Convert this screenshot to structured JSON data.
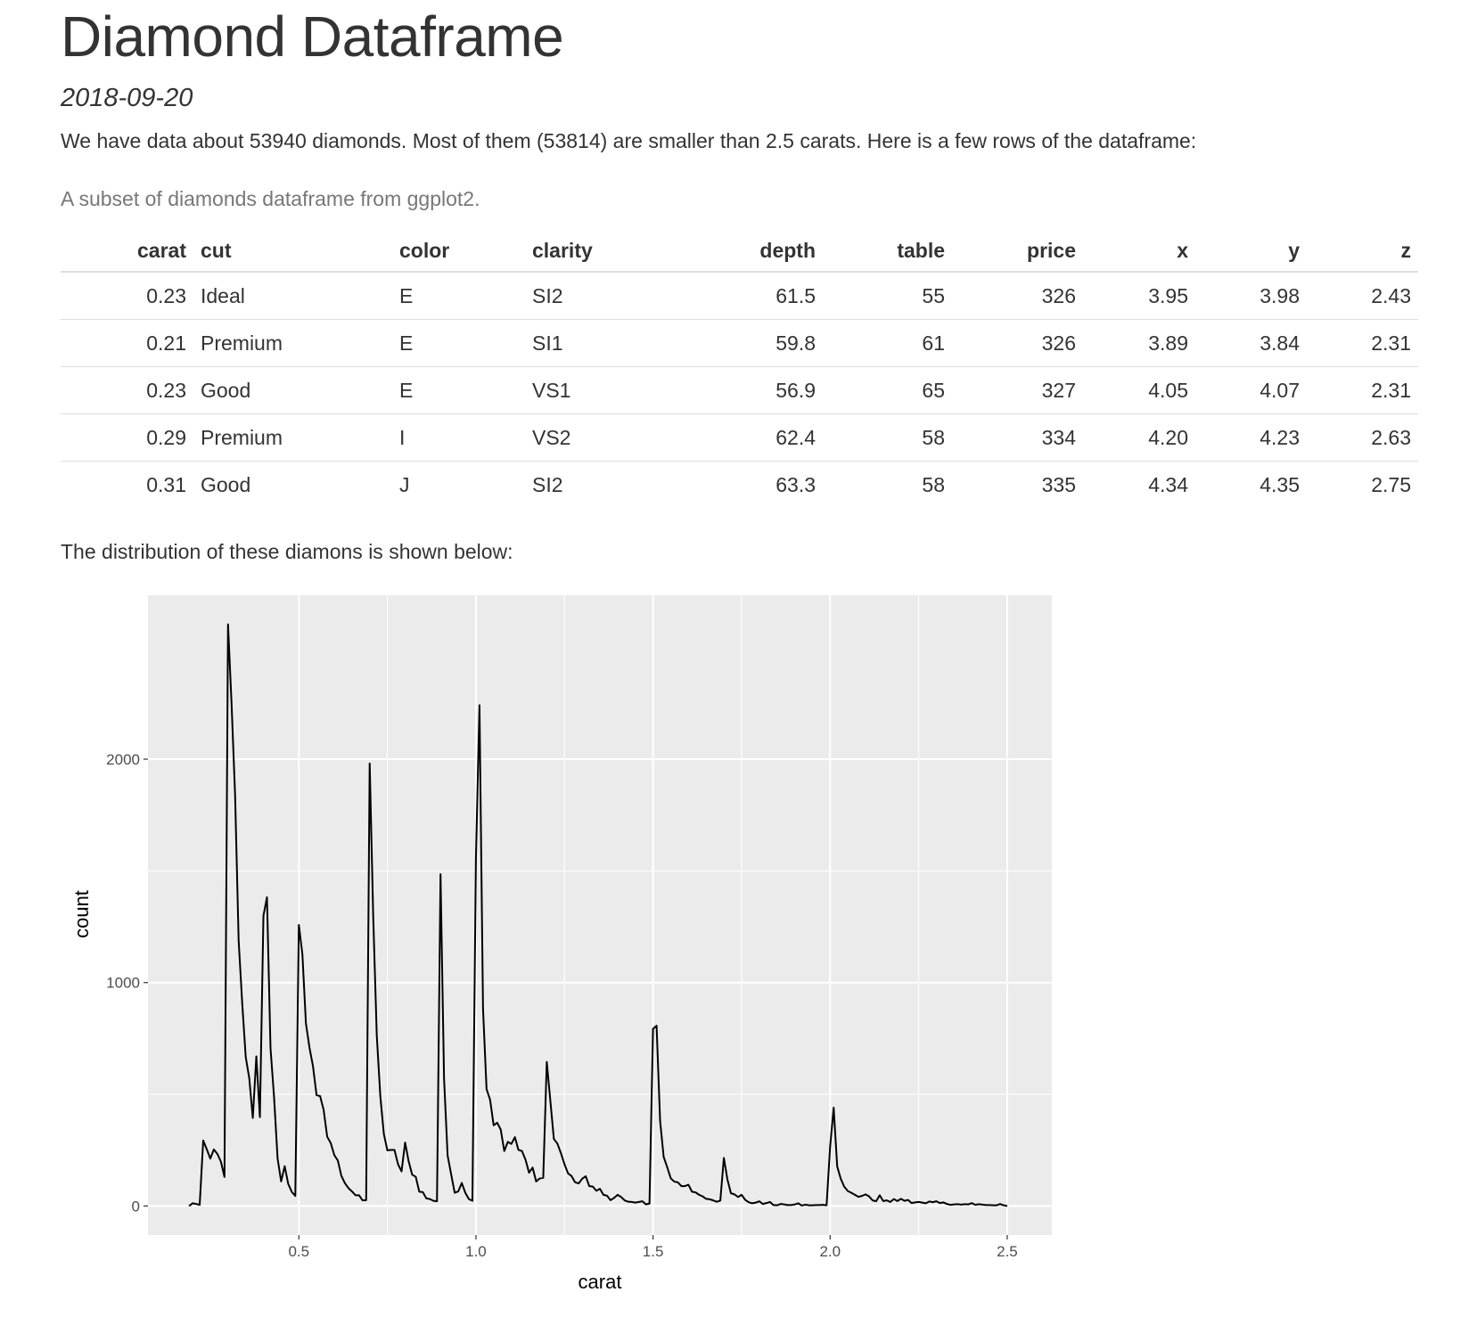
{
  "header": {
    "title": "Diamond Dataframe",
    "date": "2018-09-20"
  },
  "intro": "We have data about 53940 diamonds. Most of them (53814) are smaller than 2.5 carats. Here is a few rows of the dataframe:",
  "table": {
    "caption": "A subset of diamonds dataframe from ggplot2.",
    "columns": [
      "carat",
      "cut",
      "color",
      "clarity",
      "depth",
      "table",
      "price",
      "x",
      "y",
      "z"
    ],
    "rows": [
      [
        "0.23",
        "Ideal",
        "E",
        "SI2",
        "61.5",
        "55",
        "326",
        "3.95",
        "3.98",
        "2.43"
      ],
      [
        "0.21",
        "Premium",
        "E",
        "SI1",
        "59.8",
        "61",
        "326",
        "3.89",
        "3.84",
        "2.31"
      ],
      [
        "0.23",
        "Good",
        "E",
        "VS1",
        "56.9",
        "65",
        "327",
        "4.05",
        "4.07",
        "2.31"
      ],
      [
        "0.29",
        "Premium",
        "I",
        "VS2",
        "62.4",
        "58",
        "334",
        "4.20",
        "4.23",
        "2.63"
      ],
      [
        "0.31",
        "Good",
        "J",
        "SI2",
        "63.3",
        "58",
        "335",
        "4.34",
        "4.35",
        "2.75"
      ]
    ]
  },
  "outro": "The distribution of these diamons is shown below:",
  "chart_data": {
    "type": "line",
    "x_label": "carat",
    "y_label": "count",
    "color": "#000000",
    "xlim": [
      0.074,
      2.626
    ],
    "ylim": [
      -130,
      2734
    ],
    "xticks": [
      0.5,
      {
        "value": 1,
        "label": "1.0"
      },
      1.5,
      {
        "value": 2,
        "label": "2.0"
      },
      2.5
    ],
    "yticks": [
      0,
      1000,
      2000
    ],
    "grid": true,
    "minor_grid": true,
    "x": [
      0.19,
      0.2,
      0.21,
      0.22,
      0.23,
      0.24,
      0.25,
      0.26,
      0.27,
      0.28,
      0.29,
      0.3,
      0.31,
      0.32,
      0.33,
      0.34,
      0.35,
      0.36,
      0.37,
      0.38,
      0.39,
      0.4,
      0.41,
      0.42,
      0.43,
      0.44,
      0.45,
      0.46,
      0.47,
      0.48,
      0.49,
      0.5,
      0.51,
      0.52,
      0.53,
      0.54,
      0.55,
      0.56,
      0.57,
      0.58,
      0.59,
      0.6,
      0.61,
      0.62,
      0.63,
      0.64,
      0.65,
      0.66,
      0.67,
      0.68,
      0.69,
      0.7,
      0.71,
      0.72,
      0.73,
      0.74,
      0.75,
      0.76,
      0.77,
      0.78,
      0.79,
      0.8,
      0.81,
      0.82,
      0.83,
      0.84,
      0.85,
      0.86,
      0.87,
      0.88,
      0.89,
      0.9,
      0.91,
      0.92,
      0.93,
      0.94,
      0.95,
      0.96,
      0.97,
      0.98,
      0.99,
      1.0,
      1.01,
      1.02,
      1.03,
      1.04,
      1.05,
      1.06,
      1.07,
      1.08,
      1.09,
      1.1,
      1.11,
      1.12,
      1.13,
      1.14,
      1.15,
      1.16,
      1.17,
      1.18,
      1.19,
      1.2,
      1.21,
      1.22,
      1.23,
      1.24,
      1.25,
      1.26,
      1.27,
      1.28,
      1.29,
      1.3,
      1.31,
      1.32,
      1.33,
      1.34,
      1.35,
      1.36,
      1.37,
      1.38,
      1.39,
      1.4,
      1.41,
      1.42,
      1.43,
      1.44,
      1.45,
      1.46,
      1.47,
      1.48,
      1.49,
      1.5,
      1.51,
      1.52,
      1.53,
      1.54,
      1.55,
      1.56,
      1.57,
      1.58,
      1.59,
      1.6,
      1.61,
      1.62,
      1.63,
      1.64,
      1.65,
      1.66,
      1.67,
      1.68,
      1.69,
      1.7,
      1.71,
      1.72,
      1.73,
      1.74,
      1.75,
      1.76,
      1.77,
      1.78,
      1.79,
      1.8,
      1.81,
      1.82,
      1.83,
      1.84,
      1.85,
      1.86,
      1.87,
      1.88,
      1.89,
      1.9,
      1.91,
      1.92,
      1.93,
      1.94,
      1.95,
      1.96,
      1.97,
      1.98,
      1.99,
      2.0,
      2.01,
      2.02,
      2.03,
      2.04,
      2.05,
      2.06,
      2.07,
      2.08,
      2.09,
      2.1,
      2.11,
      2.12,
      2.13,
      2.14,
      2.15,
      2.16,
      2.17,
      2.18,
      2.19,
      2.2,
      2.21,
      2.22,
      2.23,
      2.24,
      2.25,
      2.26,
      2.27,
      2.28,
      2.29,
      2.3,
      2.31,
      2.32,
      2.33,
      2.34,
      2.35,
      2.36,
      2.37,
      2.38,
      2.39,
      2.4,
      2.41,
      2.42,
      2.43,
      2.44,
      2.45,
      2.46,
      2.47,
      2.48,
      2.49,
      2.5
    ],
    "values": [
      0,
      12,
      9,
      5,
      293,
      254,
      212,
      253,
      233,
      198,
      130,
      2604,
      2249,
      1840,
      1189,
      910,
      667,
      572,
      394,
      670,
      398,
      1299,
      1382,
      706,
      488,
      212,
      110,
      178,
      99,
      63,
      45,
      1258,
      1127,
      817,
      709,
      625,
      496,
      492,
      430,
      310,
      282,
      228,
      204,
      135,
      102,
      80,
      65,
      48,
      48,
      25,
      26,
      1981,
      1294,
      764,
      492,
      322,
      249,
      251,
      251,
      187,
      155,
      284,
      200,
      140,
      131,
      64,
      62,
      34,
      31,
      23,
      21,
      1485,
      570,
      226,
      142,
      59,
      65,
      103,
      59,
      31,
      23,
      1558,
      2242,
      883,
      523,
      475,
      361,
      373,
      342,
      246,
      287,
      278,
      308,
      251,
      246,
      207,
      149,
      172,
      110,
      123,
      126,
      645,
      473,
      300,
      279,
      236,
      187,
      146,
      134,
      106,
      101,
      122,
      133,
      89,
      87,
      68,
      77,
      50,
      46,
      26,
      36,
      50,
      40,
      25,
      19,
      18,
      15,
      18,
      21,
      7,
      11,
      793,
      807,
      381,
      220,
      174,
      124,
      109,
      106,
      89,
      89,
      95,
      64,
      61,
      50,
      43,
      32,
      30,
      25,
      19,
      24,
      215,
      119,
      57,
      52,
      40,
      50,
      28,
      17,
      12,
      15,
      21,
      9,
      13,
      18,
      4,
      3,
      9,
      7,
      4,
      4,
      7,
      12,
      2,
      6,
      3,
      3,
      4,
      4,
      5,
      3,
      265,
      440,
      177,
      122,
      86,
      67,
      59,
      50,
      41,
      45,
      52,
      43,
      25,
      21,
      48,
      22,
      25,
      18,
      31,
      22,
      32,
      23,
      27,
      13,
      16,
      18,
      15,
      12,
      20,
      17,
      21,
      13,
      16,
      9,
      5,
      7,
      8,
      6,
      8,
      7,
      13,
      5,
      8,
      6,
      4,
      4,
      3,
      3,
      9,
      3,
      0
    ]
  }
}
